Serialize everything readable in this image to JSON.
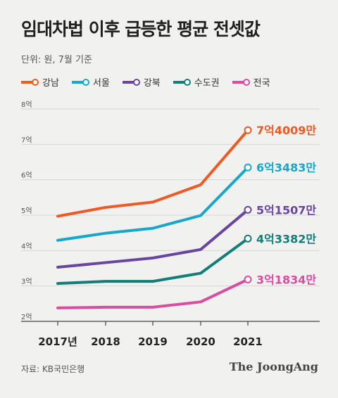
{
  "title": "임대차법 이후 급등한 평균 전셋값",
  "unit_note": "단위: 원, 7월 기준",
  "source": "자료: KB국민은행",
  "brand": "The JoongAng",
  "chart_data": {
    "type": "line",
    "x": [
      "2017년",
      "2018",
      "2019",
      "2020",
      "2021"
    ],
    "y_ticks": [
      "2억",
      "3억",
      "4억",
      "5억",
      "6억",
      "7억",
      "8억"
    ],
    "ylim": [
      2,
      8
    ],
    "series": [
      {
        "name": "강남",
        "color": "#ee5a24",
        "values": [
          4.97,
          5.22,
          5.37,
          5.86,
          7.4009
        ],
        "end_label": "7억4009만"
      },
      {
        "name": "서울",
        "color": "#17a7cc",
        "values": [
          4.29,
          4.49,
          4.63,
          4.99,
          6.3483
        ],
        "end_label": "6억3483만"
      },
      {
        "name": "강북",
        "color": "#6a45a0",
        "values": [
          3.53,
          3.66,
          3.79,
          4.03,
          5.1507
        ],
        "end_label": "5억1507만"
      },
      {
        "name": "수도권",
        "color": "#117e7a",
        "values": [
          3.07,
          3.13,
          3.13,
          3.36,
          4.3382
        ],
        "end_label": "4억3382만"
      },
      {
        "name": "전국",
        "color": "#d84da0",
        "values": [
          2.38,
          2.4,
          2.4,
          2.55,
          3.1834
        ],
        "end_label": "3억1834만"
      }
    ]
  }
}
